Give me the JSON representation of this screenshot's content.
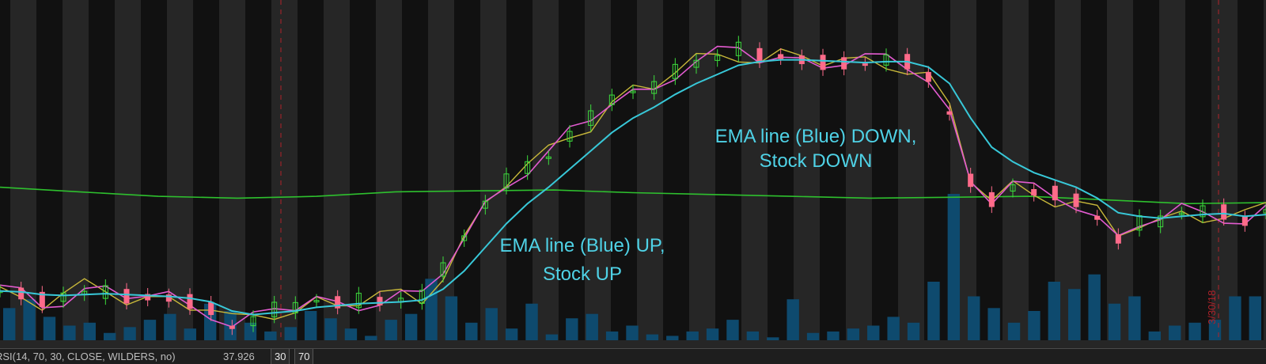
{
  "chart_data": {
    "type": "line",
    "annotations": [
      {
        "lines": [
          "EMA line (Blue) UP,",
          "Stock UP"
        ]
      },
      {
        "lines": [
          "EMA line (Blue) DOWN,",
          "Stock DOWN"
        ]
      }
    ],
    "date_marker": "3/30/18",
    "series_colors": {
      "price": "#ff6b8a",
      "price_up": "#3ddc3d",
      "ema": "#38c8d8",
      "long_ma": "#2ec02e",
      "fast_ma_pink": "#e35bd0",
      "fast_ma_yellow": "#c8b83a",
      "volume": "#0e4a6e",
      "marker": "#b0222a"
    },
    "ema_trend": [
      1.0,
      0.5,
      -1.0,
      -1.5,
      -1.0,
      -0.5,
      -1.0,
      -1.5,
      -2.0,
      -3.0,
      -5.0,
      -10.0,
      -12.0,
      -11.0,
      -10.0,
      -8.0,
      -7.0,
      -6.0,
      -5.5,
      -5.0,
      -4.0,
      2.0,
      12.0,
      25.0,
      38.0,
      49.0,
      58.0,
      68.0,
      78.0,
      88.0,
      96.0,
      102.0,
      109.0,
      115.0,
      120.0,
      125.0,
      127.0,
      128.0,
      128.0,
      127.5,
      127.0,
      126.5,
      127.0,
      127.0,
      124.0,
      115.0,
      96.0,
      80.0,
      72.0,
      66.0,
      62.0,
      58.0,
      52.0,
      44.0,
      42.0,
      41.0,
      42.0,
      43.0,
      43.5,
      42.0,
      43.0
    ],
    "long_ma": [
      58.0,
      55.5,
      53.0,
      52.0,
      53.0,
      55.5,
      56.0,
      56.5,
      55.0,
      54.0,
      53.0,
      52.0,
      52.5,
      53.0,
      51.0,
      49.0,
      49.5
    ],
    "volume": [
      22,
      28,
      16,
      10,
      12,
      5,
      9,
      14,
      18,
      8,
      25,
      20,
      12,
      6,
      9,
      20,
      15,
      8,
      3,
      14,
      18,
      42,
      30,
      12,
      22,
      8,
      25,
      4,
      15,
      18,
      6,
      10,
      4,
      3,
      6,
      8,
      14,
      6,
      2,
      28,
      5,
      6,
      8,
      10,
      16,
      12,
      40,
      100,
      30,
      22,
      12,
      20,
      40,
      35,
      45,
      25,
      30,
      6,
      10,
      12,
      14,
      30,
      30
    ],
    "rsi": {
      "label": "RSI(14, 70, 30, CLOSE, WILDERS, no)",
      "value": "37.926",
      "oversold": "30",
      "overbought": "70"
    }
  }
}
